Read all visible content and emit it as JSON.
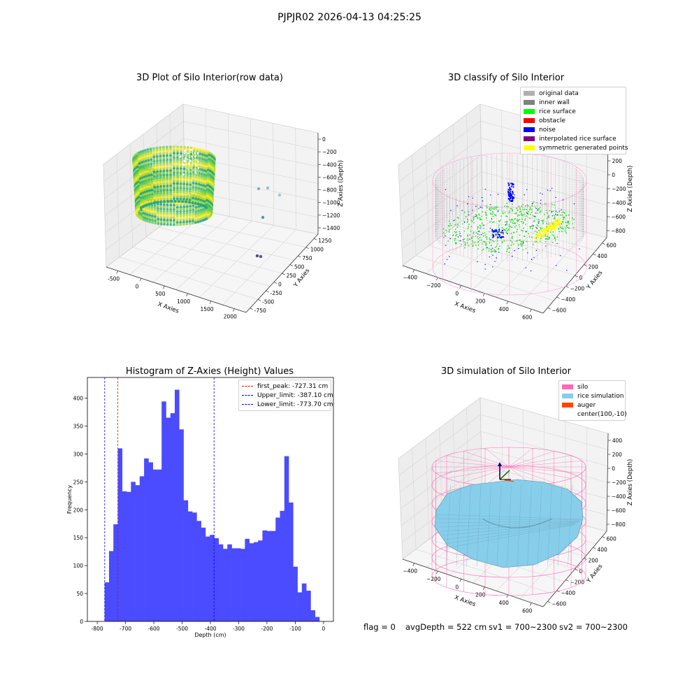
{
  "suptitle": "PJPJR02 2026-04-13 04:25:25",
  "panels": {
    "raw": {
      "title": "3D Plot of Silo Interior(row data)",
      "xlabel": "X Axies",
      "ylabel": "Y Axies",
      "zlabel": "Z Axies (Depth)",
      "xticks": [
        "-500",
        "0",
        "500",
        "1000",
        "1500",
        "2000"
      ],
      "yticks": [
        "-750",
        "-500",
        "-250",
        "0",
        "250",
        "500",
        "750",
        "1000",
        "1250"
      ],
      "zticks": [
        "0",
        "−200",
        "−400",
        "−600",
        "−800",
        "−1000",
        "−1200",
        "−1400"
      ]
    },
    "classify": {
      "title": "3D classify of Silo Interior",
      "xlabel": "X Axies",
      "ylabel": "Y Axies",
      "zlabel": "Z Axies (Depth)",
      "xticks": [
        "−400",
        "−200",
        "0",
        "200",
        "400",
        "600"
      ],
      "yticks": [
        "−600",
        "−400",
        "−200",
        "0",
        "200",
        "400",
        "600"
      ],
      "zticks": [
        "400",
        "200",
        "0",
        "−200",
        "−400",
        "−600",
        "−800"
      ],
      "legend": [
        {
          "label": "original data",
          "color": "#b0b0b0"
        },
        {
          "label": "inner wall",
          "color": "#808080"
        },
        {
          "label": "rice surface",
          "color": "#00ff00"
        },
        {
          "label": "obstacle",
          "color": "#ff0000"
        },
        {
          "label": "noise",
          "color": "#0000ff"
        },
        {
          "label": "interpolated rice surface",
          "color": "#800080"
        },
        {
          "label": "symmetric generated points",
          "color": "#ffff00"
        }
      ]
    },
    "simulation": {
      "title": "3D simulation of Silo Interior",
      "xlabel": "X Axies",
      "ylabel": "Y Axies",
      "zlabel": "Z Axies (Depth)",
      "xticks": [
        "−400",
        "−200",
        "0",
        "200",
        "400",
        "600"
      ],
      "yticks": [
        "−600",
        "−400",
        "−200",
        "0",
        "200",
        "400",
        "600"
      ],
      "zticks": [
        "400",
        "200",
        "0",
        "−200",
        "−400",
        "−600",
        "−800"
      ],
      "legend": [
        {
          "label": "silo",
          "color": "#ff69b4"
        },
        {
          "label": "rice simulation",
          "color": "#87ceeb"
        },
        {
          "label": "auger",
          "color": "#ff4500"
        },
        {
          "label": "center(100,-10)",
          "color": ""
        }
      ]
    }
  },
  "status": {
    "flag": "flag = 0",
    "avg": "avgDepth = 522 cm",
    "sv1": "sv1 = 700~2300",
    "sv2": "sv2 = 700~2300"
  },
  "chart_data": [
    {
      "type": "bar",
      "title": "Histogram of Z-Axies (Height) Values",
      "xlabel": "Depth (cm)",
      "ylabel": "Frequency",
      "xlim": [
        -835,
        35
      ],
      "ylim": [
        0,
        437
      ],
      "xticks": [
        -800,
        -700,
        -600,
        -500,
        -400,
        -300,
        -200,
        -100,
        0
      ],
      "yticks": [
        0,
        50,
        100,
        150,
        200,
        250,
        300,
        350,
        400
      ],
      "bin_start": -774,
      "bin_width": 15.5,
      "values": [
        70,
        126,
        174,
        310,
        233,
        232,
        250,
        244,
        260,
        292,
        285,
        272,
        272,
        394,
        365,
        373,
        415,
        344,
        217,
        197,
        195,
        180,
        168,
        152,
        155,
        149,
        138,
        130,
        138,
        131,
        131,
        130,
        148,
        140,
        142,
        145,
        163,
        162,
        162,
        186,
        198,
        296,
        213,
        98,
        52,
        68,
        55,
        20,
        8
      ],
      "vlines": [
        {
          "label": "first_peak: -727.31 cm",
          "x": -727.31,
          "color": "#ff0000"
        },
        {
          "label": "Upper_limit: -387.10 cm",
          "x": -387.1,
          "color": "#0000ff"
        },
        {
          "label": "Lower_limit: -773.70 cm",
          "x": -773.7,
          "color": "#0000ff"
        }
      ],
      "bar_color": "#4b4bff"
    }
  ]
}
